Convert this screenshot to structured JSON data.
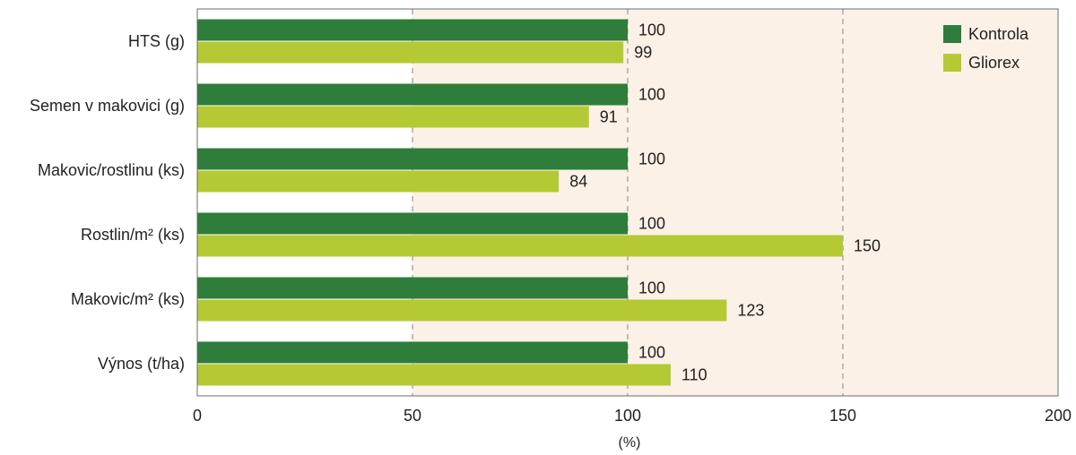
{
  "chart_data": {
    "type": "bar",
    "orientation": "horizontal",
    "categories": [
      "HTS (g)",
      "Semen v makovici (g)",
      "Makovic/rostlinu (ks)",
      "Rostlin/m² (ks)",
      "Makovic/m² (ks)",
      "Výnos  (t/ha)"
    ],
    "series": [
      {
        "name": "Kontrola",
        "color": "#2e7d3a",
        "values": [
          100,
          100,
          100,
          100,
          100,
          100
        ]
      },
      {
        "name": "Gliorex",
        "color": "#b5c934",
        "values": [
          99,
          91,
          84,
          150,
          123,
          110
        ]
      }
    ],
    "xlabel": "(%)",
    "xlim": [
      0,
      200
    ],
    "xticks": [
      0,
      50,
      100,
      150,
      200
    ],
    "grid": "vertical dashed at 50, 100, 150",
    "legend": "top-right",
    "background_colors": {
      "low": "#ffffff",
      "high": "#fbf1e6"
    },
    "shaded_from": 50
  }
}
